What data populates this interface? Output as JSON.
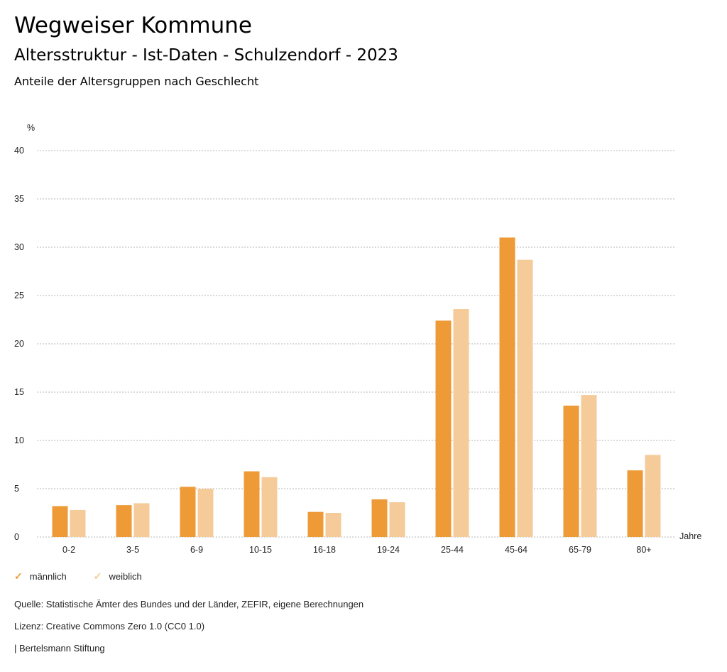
{
  "header": {
    "title": "Wegweiser Kommune",
    "subtitle": "Altersstruktur - Ist-Daten - Schulzendorf - 2023",
    "description": "Anteile der Altersgruppen nach Geschlecht"
  },
  "chart_data": {
    "type": "bar",
    "title": "Anteile der Altersgruppen nach Geschlecht",
    "xlabel": "Jahre",
    "ylabel": "%",
    "ylim": [
      0,
      40
    ],
    "yticks": [
      0,
      5,
      10,
      15,
      20,
      25,
      30,
      35,
      40
    ],
    "grid": true,
    "legend_position": "bottom-left",
    "categories": [
      "0-2",
      "3-5",
      "6-9",
      "10-15",
      "16-18",
      "19-24",
      "25-44",
      "45-64",
      "65-79",
      "80+"
    ],
    "series": [
      {
        "name": "männlich",
        "color": "#ed9a37",
        "values": [
          3.2,
          3.3,
          5.2,
          6.8,
          2.6,
          3.9,
          22.4,
          31.0,
          13.6,
          6.9
        ]
      },
      {
        "name": "weiblich",
        "color": "#f5cb99",
        "values": [
          2.8,
          3.5,
          5.0,
          6.2,
          2.5,
          3.6,
          23.6,
          28.7,
          14.7,
          8.5
        ]
      }
    ]
  },
  "legend": {
    "items": [
      {
        "label": "männlich",
        "icon": "check-icon",
        "color": "#ed9a37"
      },
      {
        "label": "weiblich",
        "icon": "check-icon",
        "color": "#f5cb99"
      }
    ]
  },
  "footer": {
    "source": "Quelle: Statistische Ämter des Bundes und der Länder, ZEFIR, eigene Berechnungen",
    "license": "Lizenz: Creative Commons Zero 1.0 (CC0 1.0)",
    "publisher": "| Bertelsmann Stiftung"
  }
}
